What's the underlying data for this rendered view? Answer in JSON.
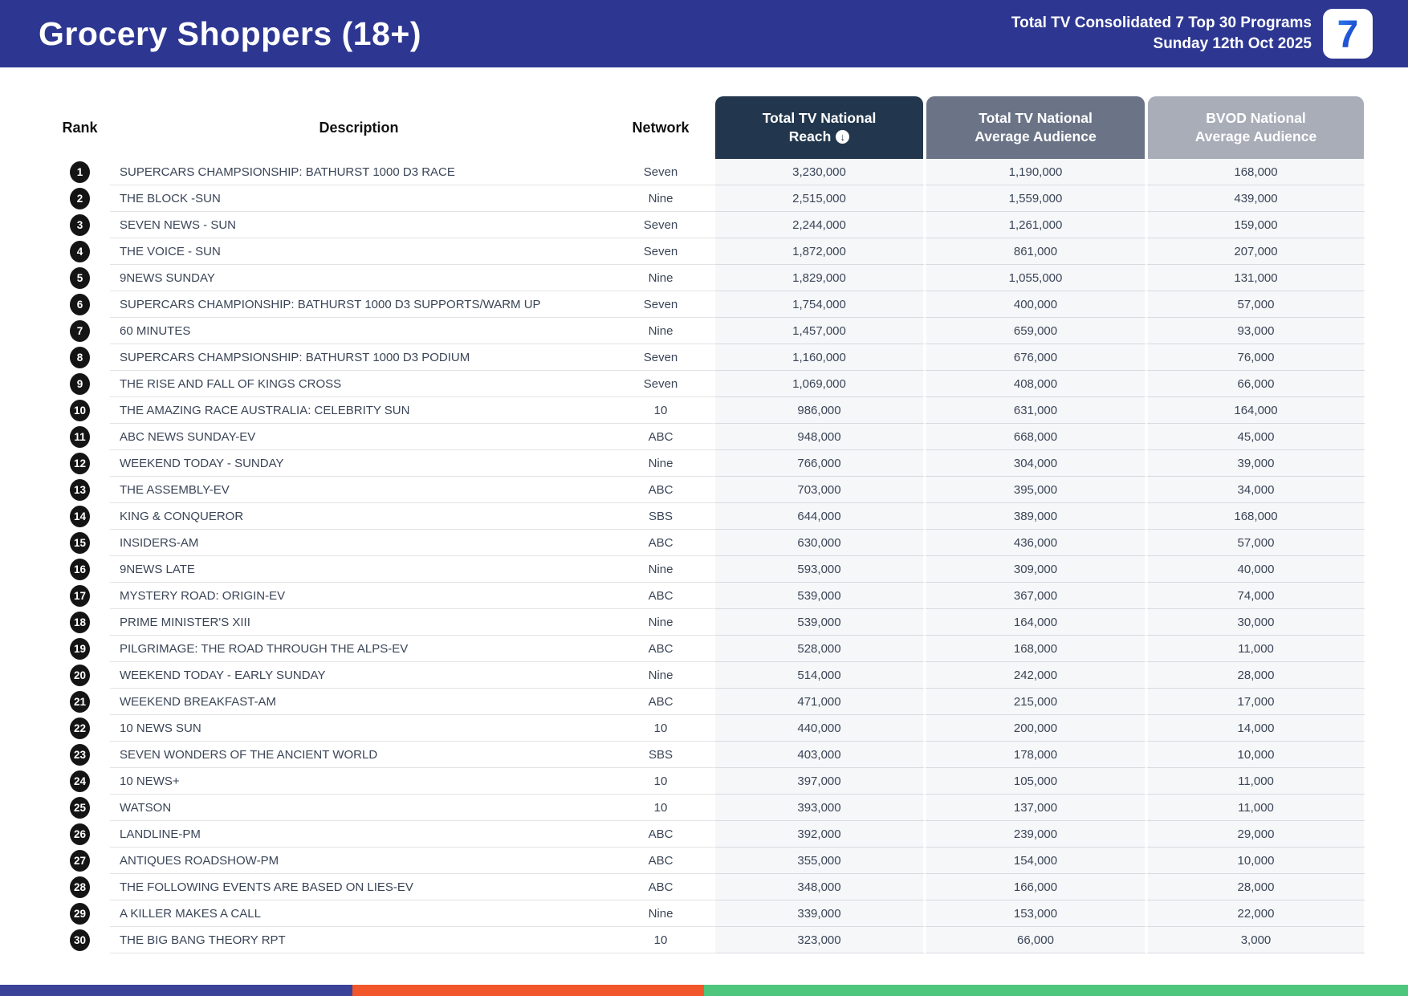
{
  "header": {
    "title": "Grocery Shoppers (18+)",
    "subtitle_line1": "Total TV Consolidated 7 Top 30 Programs",
    "subtitle_line2": "Sunday 12th Oct 2025",
    "logo_text": "7"
  },
  "table": {
    "columns": {
      "rank": "Rank",
      "description": "Description",
      "network": "Network",
      "reach": {
        "line1": "Total TV National",
        "line2": "Reach"
      },
      "avg": {
        "line1": "Total TV National",
        "line2": "Average Audience"
      },
      "bvod": {
        "line1": "BVOD National",
        "line2": "Average Audience"
      },
      "sort_icon": "circle-arrow-down"
    },
    "rows": [
      {
        "rank": "1",
        "description": "SUPERCARS CHAMPSIONSHIP: BATHURST 1000 D3 RACE",
        "network": "Seven",
        "reach": "3,230,000",
        "avg": "1,190,000",
        "bvod": "168,000"
      },
      {
        "rank": "2",
        "description": "THE BLOCK -SUN",
        "network": "Nine",
        "reach": "2,515,000",
        "avg": "1,559,000",
        "bvod": "439,000"
      },
      {
        "rank": "3",
        "description": "SEVEN NEWS - SUN",
        "network": "Seven",
        "reach": "2,244,000",
        "avg": "1,261,000",
        "bvod": "159,000"
      },
      {
        "rank": "4",
        "description": "THE VOICE - SUN",
        "network": "Seven",
        "reach": "1,872,000",
        "avg": "861,000",
        "bvod": "207,000"
      },
      {
        "rank": "5",
        "description": "9NEWS SUNDAY",
        "network": "Nine",
        "reach": "1,829,000",
        "avg": "1,055,000",
        "bvod": "131,000"
      },
      {
        "rank": "6",
        "description": "SUPERCARS CHAMPIONSHIP: BATHURST 1000 D3 SUPPORTS/WARM UP",
        "network": "Seven",
        "reach": "1,754,000",
        "avg": "400,000",
        "bvod": "57,000"
      },
      {
        "rank": "7",
        "description": "60 MINUTES",
        "network": "Nine",
        "reach": "1,457,000",
        "avg": "659,000",
        "bvod": "93,000"
      },
      {
        "rank": "8",
        "description": "SUPERCARS CHAMPSIONSHIP: BATHURST 1000 D3 PODIUM",
        "network": "Seven",
        "reach": "1,160,000",
        "avg": "676,000",
        "bvod": "76,000"
      },
      {
        "rank": "9",
        "description": "THE RISE AND FALL OF KINGS CROSS",
        "network": "Seven",
        "reach": "1,069,000",
        "avg": "408,000",
        "bvod": "66,000"
      },
      {
        "rank": "10",
        "description": "THE AMAZING RACE AUSTRALIA: CELEBRITY SUN",
        "network": "10",
        "reach": "986,000",
        "avg": "631,000",
        "bvod": "164,000"
      },
      {
        "rank": "11",
        "description": "ABC NEWS SUNDAY-EV",
        "network": "ABC",
        "reach": "948,000",
        "avg": "668,000",
        "bvod": "45,000"
      },
      {
        "rank": "12",
        "description": "WEEKEND TODAY - SUNDAY",
        "network": "Nine",
        "reach": "766,000",
        "avg": "304,000",
        "bvod": "39,000"
      },
      {
        "rank": "13",
        "description": "THE ASSEMBLY-EV",
        "network": "ABC",
        "reach": "703,000",
        "avg": "395,000",
        "bvod": "34,000"
      },
      {
        "rank": "14",
        "description": "KING & CONQUEROR",
        "network": "SBS",
        "reach": "644,000",
        "avg": "389,000",
        "bvod": "168,000"
      },
      {
        "rank": "15",
        "description": "INSIDERS-AM",
        "network": "ABC",
        "reach": "630,000",
        "avg": "436,000",
        "bvod": "57,000"
      },
      {
        "rank": "16",
        "description": "9NEWS LATE",
        "network": "Nine",
        "reach": "593,000",
        "avg": "309,000",
        "bvod": "40,000"
      },
      {
        "rank": "17",
        "description": "MYSTERY ROAD: ORIGIN-EV",
        "network": "ABC",
        "reach": "539,000",
        "avg": "367,000",
        "bvod": "74,000"
      },
      {
        "rank": "18",
        "description": "PRIME MINISTER'S XIII",
        "network": "Nine",
        "reach": "539,000",
        "avg": "164,000",
        "bvod": "30,000"
      },
      {
        "rank": "19",
        "description": "PILGRIMAGE: THE ROAD THROUGH THE ALPS-EV",
        "network": "ABC",
        "reach": "528,000",
        "avg": "168,000",
        "bvod": "11,000"
      },
      {
        "rank": "20",
        "description": "WEEKEND TODAY - EARLY SUNDAY",
        "network": "Nine",
        "reach": "514,000",
        "avg": "242,000",
        "bvod": "28,000"
      },
      {
        "rank": "21",
        "description": "WEEKEND BREAKFAST-AM",
        "network": "ABC",
        "reach": "471,000",
        "avg": "215,000",
        "bvod": "17,000"
      },
      {
        "rank": "22",
        "description": "10 NEWS SUN",
        "network": "10",
        "reach": "440,000",
        "avg": "200,000",
        "bvod": "14,000"
      },
      {
        "rank": "23",
        "description": "SEVEN WONDERS OF THE ANCIENT WORLD",
        "network": "SBS",
        "reach": "403,000",
        "avg": "178,000",
        "bvod": "10,000"
      },
      {
        "rank": "24",
        "description": "10 NEWS+",
        "network": "10",
        "reach": "397,000",
        "avg": "105,000",
        "bvod": "11,000"
      },
      {
        "rank": "25",
        "description": "WATSON",
        "network": "10",
        "reach": "393,000",
        "avg": "137,000",
        "bvod": "11,000"
      },
      {
        "rank": "26",
        "description": "LANDLINE-PM",
        "network": "ABC",
        "reach": "392,000",
        "avg": "239,000",
        "bvod": "29,000"
      },
      {
        "rank": "27",
        "description": "ANTIQUES ROADSHOW-PM",
        "network": "ABC",
        "reach": "355,000",
        "avg": "154,000",
        "bvod": "10,000"
      },
      {
        "rank": "28",
        "description": "THE FOLLOWING EVENTS ARE BASED ON LIES-EV",
        "network": "ABC",
        "reach": "348,000",
        "avg": "166,000",
        "bvod": "28,000"
      },
      {
        "rank": "29",
        "description": "A KILLER MAKES A CALL",
        "network": "Nine",
        "reach": "339,000",
        "avg": "153,000",
        "bvod": "22,000"
      },
      {
        "rank": "30",
        "description": "THE BIG BANG THEORY RPT",
        "network": "10",
        "reach": "323,000",
        "avg": "66,000",
        "bvod": "3,000"
      }
    ]
  },
  "colors": {
    "banner_blue": "#2d3792",
    "reach_header": "#22374d",
    "avg_header": "#6b7487",
    "bvod_header": "#a8adb8",
    "bar_blue": "#3b4399",
    "bar_orange": "#f1572a",
    "bar_green": "#4ec77d",
    "logo_blue_light": "#2f7df6",
    "logo_blue_dark": "#1231b8",
    "row_text": "#3a4557",
    "num_bg": "#f6f7f9"
  }
}
